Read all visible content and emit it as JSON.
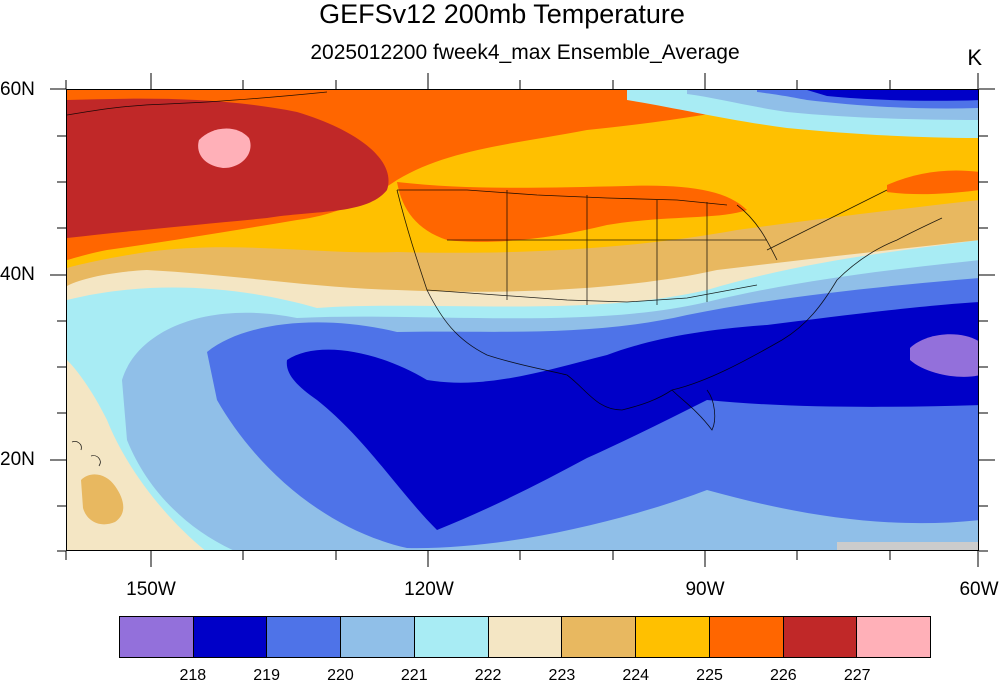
{
  "title": "GEFSv12 200mb Temperature",
  "subtitle": "2025012200 fweek4_max Ensemble_Average",
  "units": "K",
  "lat_labels": [
    "60N",
    "40N",
    "20N"
  ],
  "lon_labels": [
    "150W",
    "120W",
    "90W",
    "60W"
  ],
  "colorbar": {
    "colors": [
      "#9370db",
      "#0000c8",
      "#4e73e8",
      "#90bfe8",
      "#a8ecf4",
      "#f4e6c4",
      "#e8b860",
      "#ffc000",
      "#ff6600",
      "#c02828",
      "#ffb0b8"
    ],
    "labels": [
      "218",
      "219",
      "220",
      "221",
      "222",
      "223",
      "224",
      "225",
      "226",
      "227"
    ]
  }
}
